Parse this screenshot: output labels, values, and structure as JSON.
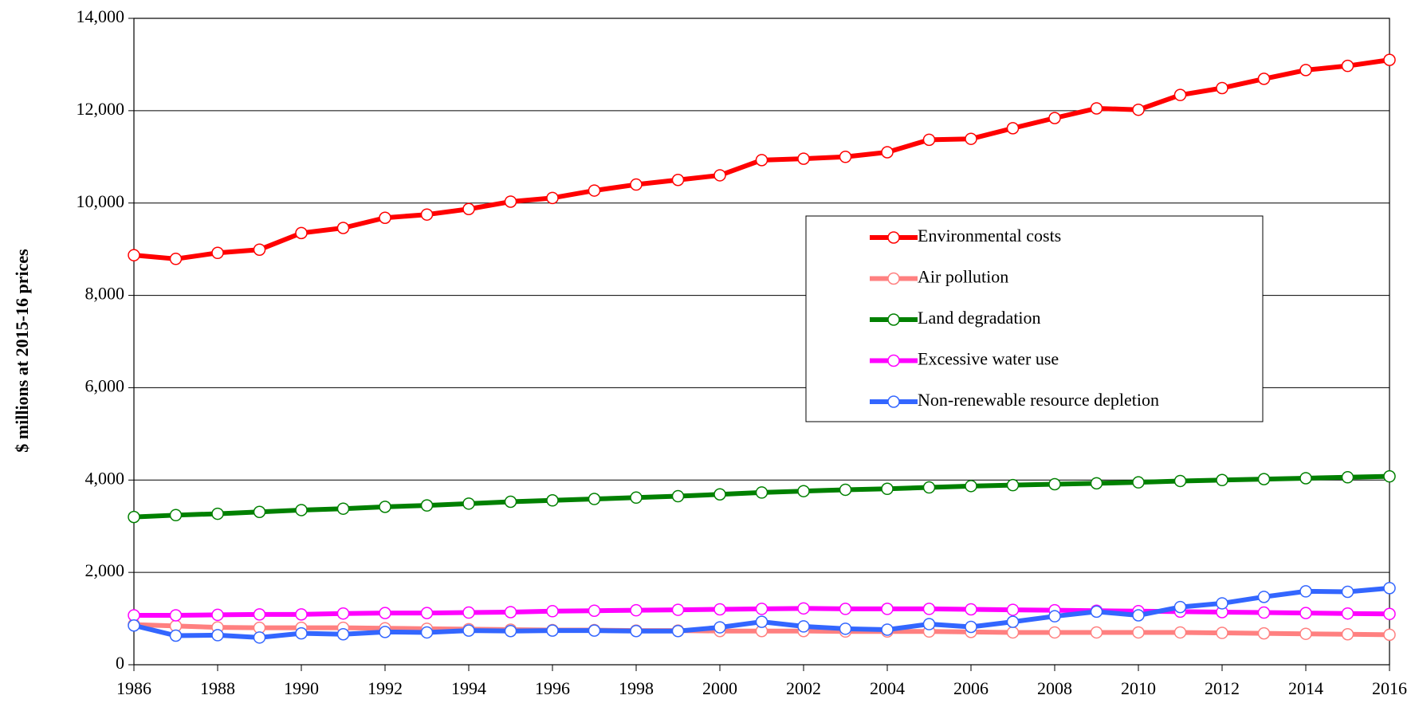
{
  "chart_data": {
    "type": "line",
    "y_label": "$ millions at 2015-16 prices",
    "x": [
      1986,
      1987,
      1988,
      1989,
      1990,
      1991,
      1992,
      1993,
      1994,
      1995,
      1996,
      1997,
      1998,
      1999,
      2000,
      2001,
      2002,
      2003,
      2004,
      2005,
      2006,
      2007,
      2008,
      2009,
      2010,
      2011,
      2012,
      2013,
      2014,
      2015,
      2016
    ],
    "xlim": [
      1986,
      2016
    ],
    "xticks": [
      1986,
      1988,
      1990,
      1992,
      1994,
      1996,
      1998,
      2000,
      2002,
      2004,
      2006,
      2008,
      2010,
      2012,
      2014,
      2016
    ],
    "ylim": [
      0,
      14000
    ],
    "yticks": [
      0,
      {
        "value": 2000,
        "label": "2,000"
      },
      {
        "value": 4000,
        "label": "4,000"
      },
      {
        "value": 6000,
        "label": "6,000"
      },
      {
        "value": 8000,
        "label": "8,000"
      },
      {
        "value": 10000,
        "label": "10,000"
      },
      {
        "value": 12000,
        "label": "12,000"
      },
      {
        "value": 14000,
        "label": "14,000"
      }
    ],
    "grid": true,
    "legend": "center right",
    "series": [
      {
        "name": "Environmental costs",
        "color": "#ff0000",
        "values": [
          8870,
          8790,
          8920,
          8990,
          9350,
          9460,
          9680,
          9750,
          9870,
          10030,
          10110,
          10270,
          10400,
          10500,
          10600,
          10930,
          10960,
          11000,
          11100,
          11370,
          11390,
          11620,
          11840,
          12050,
          12020,
          12340,
          12490,
          12690,
          12880,
          12970,
          13100
        ]
      },
      {
        "name": "Air pollution",
        "color": "#ff8080",
        "values": [
          870,
          840,
          810,
          800,
          800,
          800,
          790,
          780,
          770,
          760,
          750,
          750,
          740,
          740,
          730,
          730,
          730,
          720,
          720,
          720,
          710,
          700,
          700,
          700,
          700,
          700,
          690,
          680,
          670,
          660,
          650
        ]
      },
      {
        "name": "Land degradation",
        "color": "#008000",
        "values": [
          3200,
          3240,
          3270,
          3310,
          3350,
          3380,
          3420,
          3450,
          3490,
          3530,
          3560,
          3590,
          3620,
          3650,
          3690,
          3730,
          3760,
          3790,
          3810,
          3840,
          3870,
          3890,
          3910,
          3930,
          3950,
          3980,
          4000,
          4020,
          4040,
          4060,
          4080
        ]
      },
      {
        "name": "Excessive water use",
        "color": "#ff00ff",
        "values": [
          1070,
          1070,
          1080,
          1090,
          1090,
          1110,
          1120,
          1120,
          1130,
          1140,
          1160,
          1170,
          1180,
          1190,
          1200,
          1210,
          1220,
          1210,
          1210,
          1210,
          1200,
          1190,
          1180,
          1170,
          1160,
          1150,
          1140,
          1130,
          1120,
          1110,
          1100
        ]
      },
      {
        "name": "Non-renewable resource depletion",
        "color": "#3366ff",
        "values": [
          850,
          630,
          640,
          590,
          680,
          660,
          710,
          700,
          740,
          730,
          740,
          740,
          730,
          730,
          810,
          930,
          830,
          780,
          760,
          880,
          820,
          930,
          1050,
          1150,
          1070,
          1250,
          1330,
          1470,
          1590,
          1580,
          1660
        ]
      }
    ]
  }
}
